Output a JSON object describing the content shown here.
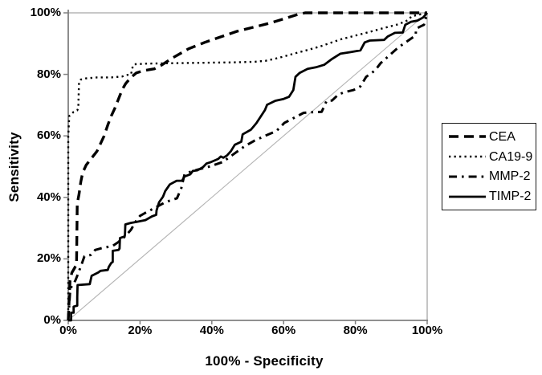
{
  "figure": {
    "background": "#ffffff",
    "curve_color": "#000000",
    "axis_color": "#808080",
    "frame_color": "#a6a6a6",
    "diagonal_color": "#b3b3b3"
  },
  "chart_data": {
    "type": "line",
    "title": "",
    "xlabel": "100% - Specificity",
    "ylabel": "Sensitivity",
    "xlim": [
      0,
      100
    ],
    "ylim": [
      0,
      100
    ],
    "grid": false,
    "legend_position": "right",
    "x_ticks": {
      "values": [
        0,
        20,
        40,
        60,
        80,
        100
      ],
      "labels": [
        "0%",
        "20%",
        "40%",
        "60%",
        "80%",
        "100%"
      ]
    },
    "y_ticks": {
      "values": [
        0,
        20,
        40,
        60,
        80,
        100
      ],
      "labels": [
        "0%",
        "20%",
        "40%",
        "60%",
        "80%",
        "100%"
      ]
    },
    "diagonal_reference": {
      "from": [
        0,
        0
      ],
      "to": [
        100,
        100
      ]
    },
    "series": [
      {
        "name": "CEA",
        "style": "dashed",
        "points": [
          [
            0,
            0
          ],
          [
            0.5,
            13
          ],
          [
            1,
            15.5
          ],
          [
            2,
            17.5
          ],
          [
            2.3,
            18
          ],
          [
            2.5,
            38
          ],
          [
            3,
            41
          ],
          [
            3.5,
            45
          ],
          [
            4,
            48
          ],
          [
            5,
            50.5
          ],
          [
            6,
            52
          ],
          [
            7,
            53.5
          ],
          [
            8,
            55
          ],
          [
            9,
            57.5
          ],
          [
            10,
            60
          ],
          [
            11,
            63.5
          ],
          [
            12,
            66.5
          ],
          [
            13,
            69
          ],
          [
            14,
            72
          ],
          [
            15,
            75
          ],
          [
            16,
            77
          ],
          [
            17.5,
            79
          ],
          [
            19,
            80.5
          ],
          [
            21,
            81.2
          ],
          [
            24,
            81.8
          ],
          [
            26,
            83
          ],
          [
            29,
            85.3
          ],
          [
            33.5,
            88.3
          ],
          [
            38,
            90.4
          ],
          [
            42.5,
            92.2
          ],
          [
            47,
            94
          ],
          [
            51.5,
            95.3
          ],
          [
            56,
            96.6
          ],
          [
            60.5,
            98.2
          ],
          [
            64,
            99.5
          ],
          [
            66,
            100
          ],
          [
            100,
            100
          ]
        ]
      },
      {
        "name": "CA19-9",
        "style": "dotted",
        "points": [
          [
            0,
            0
          ],
          [
            0,
            60
          ],
          [
            0.3,
            66.5
          ],
          [
            0.8,
            67
          ],
          [
            1.5,
            67.8
          ],
          [
            2.5,
            68.3
          ],
          [
            2.8,
            69
          ],
          [
            3,
            77.5
          ],
          [
            3.5,
            78.3
          ],
          [
            5,
            78.7
          ],
          [
            8,
            79
          ],
          [
            12,
            79
          ],
          [
            15,
            79.3
          ],
          [
            16,
            79.7
          ],
          [
            17.5,
            80
          ],
          [
            18,
            82.8
          ],
          [
            18.5,
            83.3
          ],
          [
            22,
            83.5
          ],
          [
            28,
            83.6
          ],
          [
            34,
            83.7
          ],
          [
            40,
            83.8
          ],
          [
            46,
            83.9
          ],
          [
            52,
            84.1
          ],
          [
            55,
            84.4
          ],
          [
            58,
            85.2
          ],
          [
            60,
            85.8
          ],
          [
            63,
            86.8
          ],
          [
            66,
            87.7
          ],
          [
            70,
            89
          ],
          [
            73,
            90.2
          ],
          [
            76,
            91.4
          ],
          [
            80,
            92.6
          ],
          [
            84,
            93.8
          ],
          [
            88,
            95.1
          ],
          [
            92,
            96.3
          ],
          [
            94.6,
            97.6
          ],
          [
            95.7,
            98.9
          ],
          [
            100,
            100
          ]
        ]
      },
      {
        "name": "MMP-2",
        "style": "dashdot",
        "points": [
          [
            0,
            0
          ],
          [
            0.5,
            9
          ],
          [
            0.7,
            10.4
          ],
          [
            1.1,
            11.5
          ],
          [
            1.6,
            12.2
          ],
          [
            2,
            13
          ],
          [
            2.5,
            14.5
          ],
          [
            3,
            16
          ],
          [
            3.8,
            18.5
          ],
          [
            4.5,
            20.8
          ],
          [
            6.3,
            21.3
          ],
          [
            7.5,
            22.9
          ],
          [
            9,
            23.4
          ],
          [
            11,
            23.9
          ],
          [
            12.5,
            24.3
          ],
          [
            14,
            25.5
          ],
          [
            16,
            27.5
          ],
          [
            17.5,
            29.5
          ],
          [
            19,
            32.5
          ],
          [
            20,
            34
          ],
          [
            21.5,
            35
          ],
          [
            23.8,
            36.4
          ],
          [
            27,
            38.4
          ],
          [
            28.5,
            39
          ],
          [
            30.3,
            39.7
          ],
          [
            31.5,
            43
          ],
          [
            32.4,
            47.5
          ],
          [
            34,
            48.3
          ],
          [
            36,
            49
          ],
          [
            39.6,
            50.1
          ],
          [
            43,
            51.5
          ],
          [
            46,
            54
          ],
          [
            49,
            56.5
          ],
          [
            52,
            58.5
          ],
          [
            54.8,
            60
          ],
          [
            58,
            61.6
          ],
          [
            60.2,
            64.2
          ],
          [
            62,
            65.3
          ],
          [
            65.6,
            67.5
          ],
          [
            68,
            67.7
          ],
          [
            70.6,
            67.8
          ],
          [
            72,
            71.4
          ],
          [
            73.5,
            71.5
          ],
          [
            75.3,
            73.5
          ],
          [
            77,
            74.2
          ],
          [
            79.5,
            74.9
          ],
          [
            81.4,
            76.1
          ],
          [
            83,
            79.2
          ],
          [
            85.5,
            81.3
          ],
          [
            87,
            83.6
          ],
          [
            89.8,
            86.5
          ],
          [
            92,
            88.8
          ],
          [
            94.6,
            90.9
          ],
          [
            96.8,
            92.7
          ],
          [
            96.9,
            94.8
          ],
          [
            98,
            95.5
          ],
          [
            99.1,
            96.1
          ],
          [
            100,
            100
          ]
        ]
      },
      {
        "name": "TIMP-2",
        "style": "solid",
        "points": [
          [
            0,
            0
          ],
          [
            0.8,
            0
          ],
          [
            0.8,
            2.5
          ],
          [
            1.5,
            2.5
          ],
          [
            1.5,
            4.5
          ],
          [
            2.5,
            4.8
          ],
          [
            2.5,
            7.5
          ],
          [
            2.6,
            11.5
          ],
          [
            6,
            11.8
          ],
          [
            6.5,
            14.5
          ],
          [
            8.4,
            15.6
          ],
          [
            9,
            16.1
          ],
          [
            11,
            16.4
          ],
          [
            11.3,
            17.4
          ],
          [
            12,
            18.7
          ],
          [
            12.4,
            19
          ],
          [
            12.4,
            22.6
          ],
          [
            14,
            22.9
          ],
          [
            14.3,
            23.4
          ],
          [
            14.4,
            26.8
          ],
          [
            15.7,
            27.3
          ],
          [
            15.8,
            27.8
          ],
          [
            15.9,
            31.2
          ],
          [
            17.4,
            31.7
          ],
          [
            19,
            32
          ],
          [
            21.5,
            32.6
          ],
          [
            23.3,
            33.8
          ],
          [
            24.5,
            34.3
          ],
          [
            24.6,
            35.8
          ],
          [
            25.3,
            38.4
          ],
          [
            26.4,
            40.2
          ],
          [
            27,
            42
          ],
          [
            28.3,
            44.2
          ],
          [
            30.2,
            45.4
          ],
          [
            31.7,
            45.4
          ],
          [
            32.4,
            46.8
          ],
          [
            34,
            47.5
          ],
          [
            34.7,
            48.6
          ],
          [
            36,
            48.8
          ],
          [
            37.6,
            49.9
          ],
          [
            38.5,
            51
          ],
          [
            39.6,
            51.4
          ],
          [
            41.8,
            52.5
          ],
          [
            42.5,
            53.3
          ],
          [
            43.2,
            52.9
          ],
          [
            44.2,
            53.6
          ],
          [
            45.3,
            55
          ],
          [
            46.4,
            57.1
          ],
          [
            48.2,
            58.1
          ],
          [
            48.6,
            60.5
          ],
          [
            50.9,
            62
          ],
          [
            52.4,
            64.1
          ],
          [
            54.8,
            68.4
          ],
          [
            55.4,
            70.1
          ],
          [
            57.7,
            71.4
          ],
          [
            60,
            72
          ],
          [
            61.5,
            72.7
          ],
          [
            62.7,
            74.9
          ],
          [
            63.3,
            79.2
          ],
          [
            64.5,
            80.5
          ],
          [
            66.7,
            81.8
          ],
          [
            69,
            82.3
          ],
          [
            71.3,
            83.1
          ],
          [
            73.5,
            85
          ],
          [
            75.8,
            86.7
          ],
          [
            78.5,
            87.2
          ],
          [
            81.4,
            87.8
          ],
          [
            82.6,
            90.4
          ],
          [
            84,
            91
          ],
          [
            88,
            91.2
          ],
          [
            89,
            92.3
          ],
          [
            91,
            93.5
          ],
          [
            93.2,
            93.6
          ],
          [
            93.9,
            96.1
          ],
          [
            95.5,
            97.1
          ],
          [
            97.3,
            97.5
          ],
          [
            98.9,
            98.5
          ],
          [
            100,
            100
          ]
        ]
      }
    ]
  },
  "legend": {
    "items": [
      {
        "label": "CEA",
        "style": "dashed"
      },
      {
        "label": "CA19-9",
        "style": "dotted"
      },
      {
        "label": "MMP-2",
        "style": "dashdot"
      },
      {
        "label": "TIMP-2",
        "style": "solid"
      }
    ]
  }
}
